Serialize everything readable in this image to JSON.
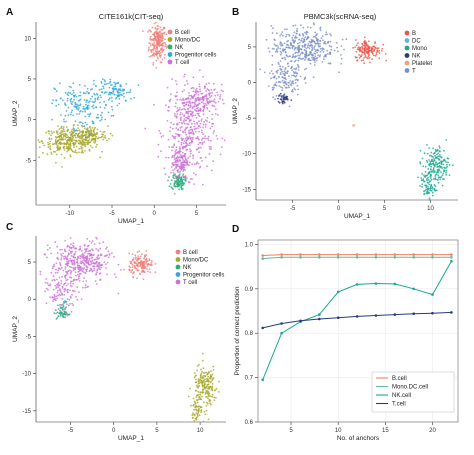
{
  "chart_data": [
    {
      "id": "A",
      "type": "scatter",
      "panel_label": "A",
      "title": "CITE161k(CIT-seq)",
      "xlabel": "UMAP_1",
      "ylabel": "UMAP_2",
      "xlim": [
        -14,
        8.5
      ],
      "ylim": [
        -10.5,
        12
      ],
      "xticks": [
        -10,
        -5,
        0,
        5
      ],
      "yticks": [
        -5,
        0,
        5,
        10
      ],
      "legend_position": "top-right",
      "series": [
        {
          "name": "B cell",
          "color": "#f0807a",
          "clusters": [
            {
              "cx": 0.4,
              "cy": 9.5,
              "sx": 0.5,
              "sy": 1.2,
              "n": 230
            }
          ]
        },
        {
          "name": "Mono/DC",
          "color": "#a5a82a",
          "clusters": [
            {
              "cx": -10.0,
              "cy": -2.6,
              "sx": 1.6,
              "sy": 0.8,
              "n": 330
            },
            {
              "cx": -7.5,
              "cy": -2.0,
              "sx": 1.0,
              "sy": 0.6,
              "n": 120
            }
          ]
        },
        {
          "name": "NK",
          "color": "#28b078",
          "clusters": [
            {
              "cx": 2.8,
              "cy": -7.6,
              "sx": 0.4,
              "sy": 0.5,
              "n": 110
            }
          ]
        },
        {
          "name": "Progenitor cells",
          "color": "#30a8d8",
          "clusters": [
            {
              "cx": -8.5,
              "cy": 1.8,
              "sx": 1.6,
              "sy": 1.4,
              "n": 180
            },
            {
              "cx": -4.5,
              "cy": 3.4,
              "sx": 1.0,
              "sy": 0.7,
              "n": 100
            }
          ]
        },
        {
          "name": "T cell",
          "color": "#cc72d8",
          "clusters": [
            {
              "cx": 4.2,
              "cy": -1.5,
              "sx": 1.4,
              "sy": 2.6,
              "n": 380
            },
            {
              "cx": 5.2,
              "cy": 2.5,
              "sx": 1.4,
              "sy": 0.9,
              "n": 170
            },
            {
              "cx": 3.0,
              "cy": -5.2,
              "sx": 0.5,
              "sy": 1.0,
              "n": 120
            }
          ]
        }
      ]
    },
    {
      "id": "B",
      "type": "scatter",
      "panel_label": "B",
      "title": "PBMC3k(scRNA-seq)",
      "xlabel": "UMAP_1",
      "ylabel": "UMAP_2",
      "xlim": [
        -9,
        13
      ],
      "ylim": [
        -16.5,
        8.5
      ],
      "xticks": [
        -5,
        0,
        5,
        10
      ],
      "yticks": [
        -15,
        -10,
        -5,
        0,
        5
      ],
      "legend_position": "top-right",
      "series": [
        {
          "name": "B",
          "color": "#e8584a",
          "clusters": [
            {
              "cx": 3.2,
              "cy": 4.6,
              "sx": 0.7,
              "sy": 0.7,
              "n": 150
            }
          ]
        },
        {
          "name": "DC",
          "color": "#6ab0dc",
          "clusters": []
        },
        {
          "name": "Mono",
          "color": "#1aa890",
          "clusters": [
            {
              "cx": 10.6,
              "cy": -11.6,
              "sx": 0.7,
              "sy": 1.3,
              "n": 170
            },
            {
              "cx": 9.7,
              "cy": -14.6,
              "sx": 0.4,
              "sy": 0.9,
              "n": 70
            }
          ]
        },
        {
          "name": "NK",
          "color": "#2a3a7a",
          "clusters": [
            {
              "cx": -6.0,
              "cy": -2.3,
              "sx": 0.3,
              "sy": 0.4,
              "n": 40
            }
          ]
        },
        {
          "name": "Platelet",
          "color": "#f0a080",
          "clusters": [
            {
              "cx": 1.6,
              "cy": -6.0,
              "sx": 0.08,
              "sy": 0.1,
              "n": 3
            }
          ]
        },
        {
          "name": "T",
          "color": "#7c90c8",
          "clusters": [
            {
              "cx": -3.8,
              "cy": 5.0,
              "sx": 1.7,
              "sy": 1.4,
              "n": 380
            },
            {
              "cx": -5.9,
              "cy": 0.7,
              "sx": 0.9,
              "sy": 1.3,
              "n": 130
            }
          ]
        }
      ]
    },
    {
      "id": "C",
      "type": "scatter",
      "panel_label": "C",
      "title": "",
      "xlabel": "UMAP_1",
      "ylabel": "UMAP_2",
      "xlim": [
        -9,
        13
      ],
      "ylim": [
        -16.5,
        8.5
      ],
      "xticks": [
        -5,
        0,
        5,
        10
      ],
      "yticks": [
        -15,
        -10,
        -5,
        0,
        5
      ],
      "legend_position": "top-right",
      "series": [
        {
          "name": "B cell",
          "color": "#f0807a",
          "clusters": [
            {
              "cx": 3.2,
              "cy": 4.6,
              "sx": 0.7,
              "sy": 0.7,
              "n": 150
            }
          ]
        },
        {
          "name": "Mono/DC",
          "color": "#a5a82a",
          "clusters": [
            {
              "cx": 10.6,
              "cy": -11.6,
              "sx": 0.7,
              "sy": 1.3,
              "n": 170
            },
            {
              "cx": 9.7,
              "cy": -14.6,
              "sx": 0.4,
              "sy": 0.9,
              "n": 70
            }
          ]
        },
        {
          "name": "NK",
          "color": "#28b078",
          "clusters": [
            {
              "cx": -5.9,
              "cy": -1.8,
              "sx": 0.35,
              "sy": 0.5,
              "n": 50
            }
          ]
        },
        {
          "name": "Progenitor cells",
          "color": "#30a8d8",
          "clusters": [
            {
              "cx": -5.6,
              "cy": -0.5,
              "sx": 0.2,
              "sy": 0.3,
              "n": 8
            }
          ]
        },
        {
          "name": "T cell",
          "color": "#cc72d8",
          "clusters": [
            {
              "cx": -3.8,
              "cy": 5.0,
              "sx": 1.7,
              "sy": 1.4,
              "n": 380
            },
            {
              "cx": -5.9,
              "cy": 0.9,
              "sx": 0.9,
              "sy": 1.3,
              "n": 120
            }
          ]
        }
      ]
    },
    {
      "id": "D",
      "type": "line",
      "panel_label": "D",
      "title": "",
      "xlabel": "No. of anchors",
      "ylabel": "Proportion of correct prediction",
      "xlim": [
        1.5,
        22.7
      ],
      "ylim": [
        0.6,
        1.01
      ],
      "xticks": [
        5,
        10,
        15,
        20
      ],
      "yticks": [
        0.6,
        0.7,
        0.8,
        0.9,
        1.0
      ],
      "grid": true,
      "legend_position": "bottom-right",
      "x": [
        2,
        4,
        6,
        8,
        10,
        12,
        14,
        16,
        18,
        20,
        22
      ],
      "series": [
        {
          "name": "B.cell",
          "color": "#f08060",
          "values": [
            0.975,
            0.977,
            0.977,
            0.977,
            0.977,
            0.977,
            0.977,
            0.977,
            0.977,
            0.977,
            0.977
          ]
        },
        {
          "name": "Mono.DC.cell",
          "color": "#66b8a0",
          "values": [
            0.968,
            0.971,
            0.971,
            0.971,
            0.971,
            0.971,
            0.971,
            0.971,
            0.971,
            0.971,
            0.971
          ]
        },
        {
          "name": "NK.cell",
          "color": "#1aa890",
          "values": [
            0.695,
            0.8,
            0.826,
            0.842,
            0.893,
            0.91,
            0.912,
            0.911,
            0.9,
            0.887,
            0.962
          ]
        },
        {
          "name": "T.cell",
          "color": "#2a3a7a",
          "values": [
            0.812,
            0.822,
            0.828,
            0.832,
            0.835,
            0.838,
            0.84,
            0.842,
            0.844,
            0.845,
            0.847
          ]
        }
      ]
    }
  ]
}
